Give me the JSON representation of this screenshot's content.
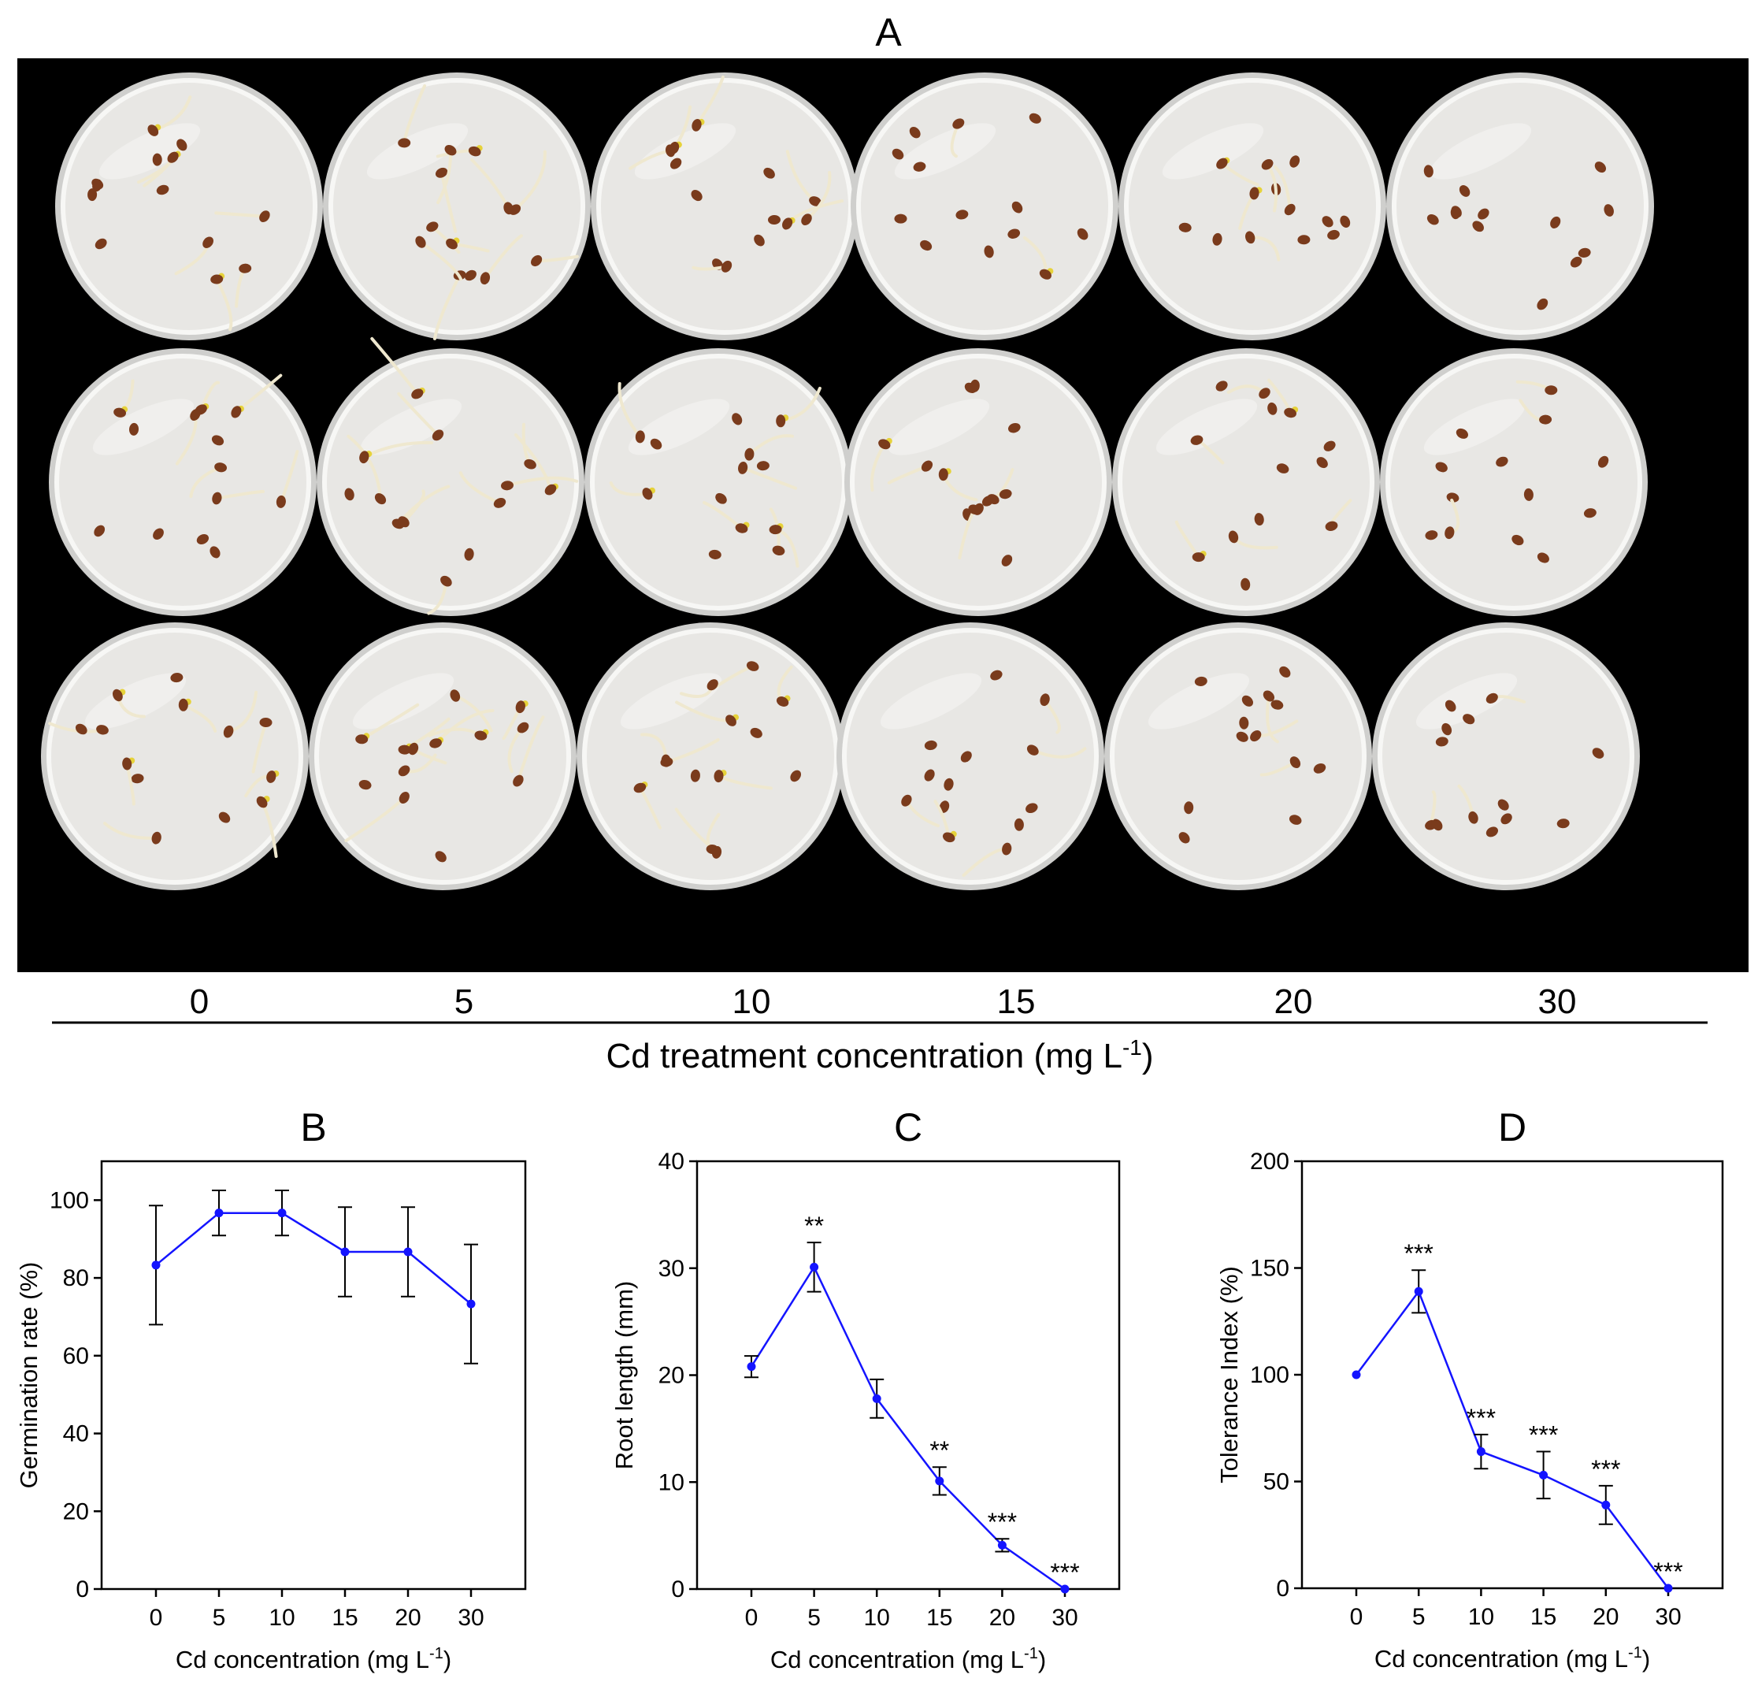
{
  "panel_a": {
    "label": "A",
    "columns": [
      "0",
      "5",
      "10",
      "15",
      "20",
      "30"
    ],
    "axis_title_main": "Cd treatment concentration (mg L",
    "axis_title_sup": "-1",
    "axis_title_end": ")",
    "photo": {
      "background": "#000000",
      "dish_fill": "#e8e7e4",
      "dish_rim": "#f7f7f5",
      "seed_color": "#7a3b1c",
      "root_color": "#efe8cf",
      "sprout_color": "#e6d23a",
      "rows": 3,
      "relative_sprouting_by_column": [
        0.55,
        0.9,
        0.6,
        0.45,
        0.35,
        0.1
      ]
    }
  },
  "panels": [
    {
      "label": "B",
      "ylabel": "Germination rate (%)",
      "xlabel_main": "Cd concentration (mg L",
      "xlabel_sup": "-1",
      "xlabel_end": ")"
    },
    {
      "label": "C",
      "ylabel": "Root length (mm)",
      "xlabel_main": "Cd concentration (mg L",
      "xlabel_sup": "-1",
      "xlabel_end": ")"
    },
    {
      "label": "D",
      "ylabel": "Tolerance Index (%)",
      "xlabel_main": "Cd concentration (mg L",
      "xlabel_sup": "-1",
      "xlabel_end": ")"
    }
  ],
  "colors": {
    "line": "#1414ff",
    "axis": "#000000",
    "error_bar": "#000000"
  },
  "chart_data": [
    {
      "type": "line",
      "categories": [
        "0",
        "5",
        "10",
        "15",
        "20",
        "30"
      ],
      "values": [
        83.3,
        96.7,
        96.7,
        86.7,
        86.7,
        73.3
      ],
      "errors": [
        15.3,
        5.8,
        5.8,
        11.5,
        11.5,
        15.3
      ],
      "significance": [
        "",
        "",
        "",
        "",
        "",
        ""
      ],
      "ylim": [
        0,
        110
      ],
      "yticks": [
        0,
        20,
        40,
        60,
        80,
        100
      ]
    },
    {
      "type": "line",
      "categories": [
        "0",
        "5",
        "10",
        "15",
        "20",
        "30"
      ],
      "values": [
        20.8,
        30.1,
        17.8,
        10.1,
        4.1,
        0
      ],
      "errors": [
        1.0,
        2.3,
        1.8,
        1.3,
        0.6,
        0
      ],
      "significance": [
        "",
        "**",
        "",
        "**",
        "***",
        "***"
      ],
      "ylim": [
        0,
        40
      ],
      "yticks": [
        0,
        10,
        20,
        30,
        40
      ]
    },
    {
      "type": "line",
      "categories": [
        "0",
        "5",
        "10",
        "15",
        "20",
        "30"
      ],
      "values": [
        100,
        139,
        64,
        53,
        39,
        0
      ],
      "errors": [
        0,
        10,
        8,
        11,
        9,
        0
      ],
      "significance": [
        "",
        "***",
        "***",
        "***",
        "***",
        "***"
      ],
      "ylim": [
        0,
        200
      ],
      "yticks": [
        0,
        50,
        100,
        150,
        200
      ]
    }
  ]
}
